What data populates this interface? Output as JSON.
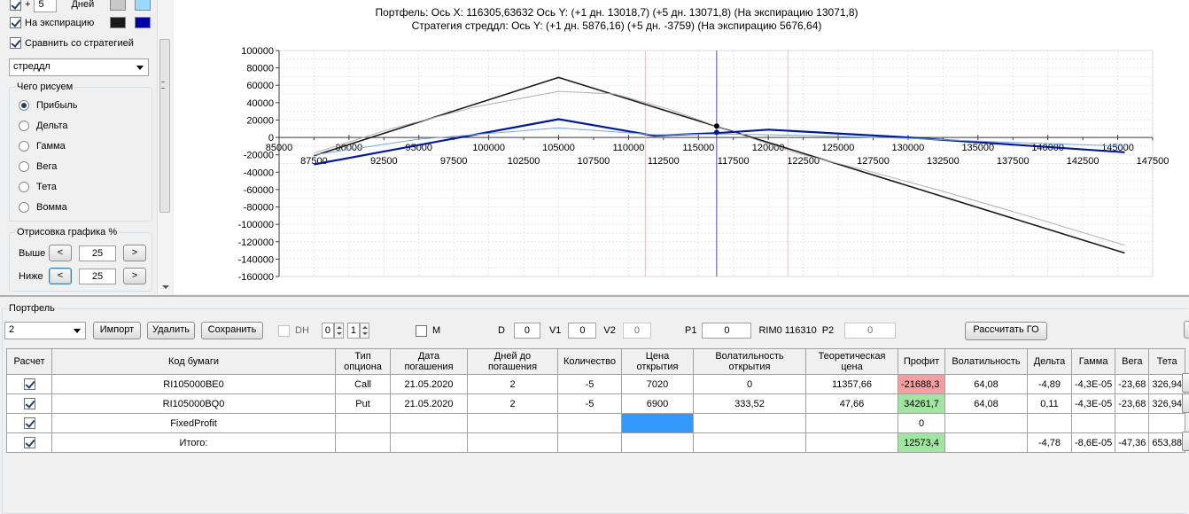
{
  "left_panel": {
    "days_row": {
      "label": "Дней",
      "plus": "+",
      "value": "5",
      "checked": true,
      "colors": [
        "#c8c8c8",
        "#99d9ff"
      ]
    },
    "expiration_row": {
      "label": "На экспирацию",
      "checked": true,
      "colors": [
        "#1a1a1a",
        "#0000aa"
      ]
    },
    "compare_row": {
      "label": "Сравнить со стратегией",
      "checked": true
    },
    "strategy_combo": {
      "value": "стреддл"
    },
    "draw_group": {
      "title": "Чего рисуем",
      "options": [
        "Прибыль",
        "Дельта",
        "Гамма",
        "Вега",
        "Тета",
        "Вомма"
      ],
      "selected": "Прибыль"
    },
    "chart_draw_group": {
      "title": "Отрисовка графика %",
      "above_label": "Выше",
      "above_value": "25",
      "below_label": "Ниже",
      "below_value": "25",
      "left_btn": "<",
      "right_btn": ">"
    }
  },
  "chart_data": {
    "type": "line",
    "title_line1": "Портфель: Ось X: 116305,63632 Ось Y:  (+1 дн. 13018,7)  (+5 дн. 13071,8)  (На экспирацию 13071,8)",
    "title_line2": "Стратегия стреддл:  Ось Y:  (+1 дн. 5876,16)  (+5 дн. -3759)  (На экспирацию 5676,64)",
    "xlim": [
      85000,
      147500
    ],
    "ylim": [
      -160000,
      100000
    ],
    "y_ticks": [
      100000,
      80000,
      60000,
      40000,
      20000,
      0,
      -20000,
      -40000,
      -60000,
      -80000,
      -100000,
      -120000,
      -140000,
      -160000
    ],
    "x_ticks_upper": [
      85000,
      90000,
      95000,
      100000,
      105000,
      110000,
      115000,
      120000,
      125000,
      130000,
      135000,
      140000,
      145000
    ],
    "x_ticks_lower": [
      87500,
      92500,
      97500,
      102500,
      107500,
      112500,
      117500,
      122500,
      127500,
      132500,
      137500,
      142500,
      147500
    ],
    "grid": true,
    "vertical_lines": [
      {
        "x": 111200,
        "color": "#f4b8c0"
      },
      {
        "x": 116305.63632,
        "color": "#4a4aa0"
      },
      {
        "x": 121400,
        "color": "#f4b8c0"
      }
    ],
    "series": [
      {
        "color": "#1a1a1a",
        "width": 1.6,
        "points": [
          [
            87500,
            -21000
          ],
          [
            105000,
            69000
          ],
          [
            145500,
            -133000
          ]
        ]
      },
      {
        "color": "#b0b0b0",
        "width": 1,
        "points": [
          [
            87500,
            -18000
          ],
          [
            93000,
            10000
          ],
          [
            99000,
            35000
          ],
          [
            105000,
            53000
          ],
          [
            109000,
            50000
          ],
          [
            113000,
            32000
          ],
          [
            117500,
            6000
          ],
          [
            122000,
            -18000
          ],
          [
            127000,
            -38000
          ],
          [
            132500,
            -62000
          ],
          [
            138500,
            -90000
          ],
          [
            145500,
            -124000
          ]
        ]
      },
      {
        "color": "#001a99",
        "width": 2.2,
        "points": [
          [
            87500,
            -31000
          ],
          [
            105000,
            21000
          ],
          [
            111800,
            2000
          ],
          [
            116300,
            5000
          ],
          [
            120000,
            9000
          ],
          [
            130000,
            0
          ],
          [
            145500,
            -17000
          ]
        ]
      },
      {
        "color": "#7aa8e0",
        "width": 1,
        "points": [
          [
            87500,
            -20000
          ],
          [
            95000,
            -2000
          ],
          [
            105000,
            11000
          ],
          [
            112000,
            3000
          ],
          [
            117000,
            4000
          ],
          [
            122000,
            2500
          ],
          [
            130000,
            -1000
          ],
          [
            138000,
            -6000
          ],
          [
            145500,
            -10000
          ]
        ]
      }
    ],
    "markers": [
      {
        "x": 116305.63632,
        "y": 13018.7,
        "color": "#000000"
      },
      {
        "x": 116305.63632,
        "y": 5876.16,
        "color": "#001a99"
      }
    ]
  },
  "portfolio": {
    "group_label": "Портфель",
    "combo_value": "2",
    "import_label": "Импорт",
    "delete_label": "Удалить",
    "save_label": "Сохранить",
    "dh_label": "DH",
    "dh_spin1": "0",
    "dh_spin2": "1",
    "m_label": "M",
    "d_label": "D",
    "d_value": "0",
    "v1_label": "V1",
    "v1_value": "0",
    "v2_label": "V2",
    "v2_value": "0",
    "p1_label": "P1",
    "p1_value": "0",
    "rim_text": "RIM0 116310",
    "p2_label": "P2",
    "p2_value": "0",
    "calc_label": "Рассчитать ГО"
  },
  "table": {
    "headers": [
      "Расчет",
      "Код бумаги",
      "Тип опциона",
      "Дата погашения",
      "Дней до погашения",
      "Количество",
      "Цена открытия",
      "Волатильность открытия",
      "Теоретическая цена",
      "Профит",
      "Волатильность",
      "Дельта",
      "Гамма",
      "Вега",
      "Тета"
    ],
    "rows": [
      {
        "checked": true,
        "cells": [
          "RI105000BE0",
          "Call",
          "21.05.2020",
          "2",
          "-5",
          "7020",
          "0",
          "11357,66",
          "-21688,3",
          "64,08",
          "-4,89",
          "-4,3E-05",
          "-23,68",
          "326,94"
        ],
        "profit_state": "neg"
      },
      {
        "checked": true,
        "cells": [
          "RI105000BQ0",
          "Put",
          "21.05.2020",
          "2",
          "-5",
          "6900",
          "333,52",
          "47,66",
          "34261,7",
          "64,08",
          "0,11",
          "-4,3E-05",
          "-23,68",
          "326,94"
        ],
        "profit_state": "pos"
      },
      {
        "checked": true,
        "cells": [
          "FixedProfit",
          "",
          "",
          "",
          "",
          "",
          "",
          "",
          "0",
          "",
          "",
          "",
          "",
          ""
        ],
        "profit_state": "none",
        "selected_col": 5
      },
      {
        "checked": true,
        "cells": [
          "Итого:",
          "",
          "",
          "",
          "",
          "",
          "",
          "",
          "12573,4",
          "",
          "-4,78",
          "-8,6E-05",
          "-47,36",
          "653,88"
        ],
        "profit_state": "pos"
      }
    ]
  }
}
